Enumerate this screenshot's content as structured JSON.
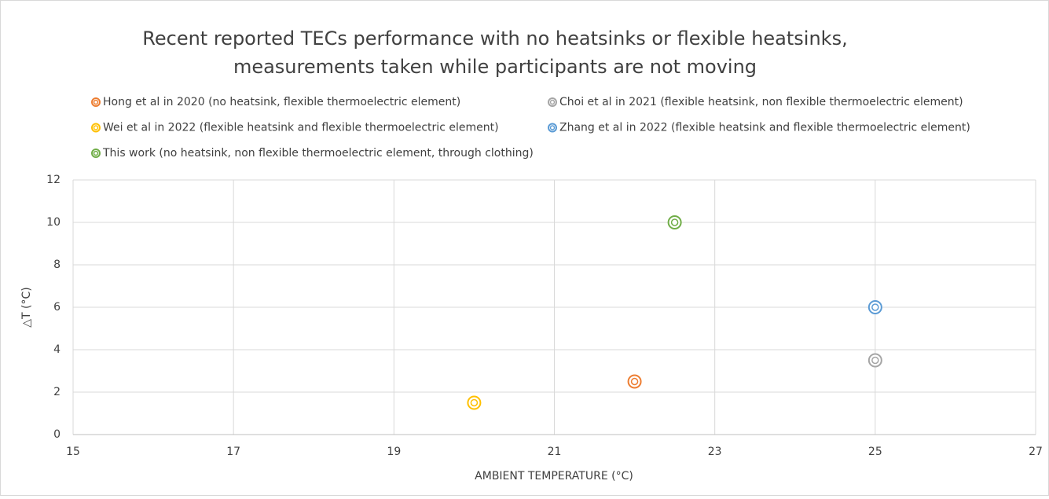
{
  "chart_data": {
    "type": "scatter",
    "title": [
      "Recent reported TECs performance with no heatsinks or flexible heatsinks,",
      "measurements taken while participants are not moving"
    ],
    "x_label": "AMBIENT TEMPERATURE (°C)",
    "y_label": "△T (°C)",
    "series": [
      {
        "name": "Hong et al in 2020 (no heatsink, flexible thermoelectric element)",
        "color": "#ED7D31",
        "x": [
          22
        ],
        "values": [
          2.5
        ]
      },
      {
        "name": "Choi et al in 2021 (flexible heatsink, non flexible thermoelectric element)",
        "color": "#A5A5A5",
        "x": [
          25
        ],
        "values": [
          3.5
        ]
      },
      {
        "name": "Wei et al in 2022 (flexible heatsink and flexible thermoelectric element)",
        "color": "#FFC000",
        "x": [
          20
        ],
        "values": [
          1.5
        ]
      },
      {
        "name": "Zhang et al in 2022 (flexible heatsink and flexible thermoelectric element)",
        "color": "#5B9BD5",
        "x": [
          25
        ],
        "values": [
          6
        ]
      },
      {
        "name": "This work (no heatsink, non flexible thermoelectric element, through clothing)",
        "color": "#70AD47",
        "x": [
          22.5
        ],
        "values": [
          10
        ]
      }
    ],
    "xlim": [
      15,
      27
    ],
    "xticks": [
      15,
      17,
      19,
      21,
      23,
      25,
      27
    ],
    "ylim": [
      0,
      12
    ],
    "yticks": [
      0,
      2,
      4,
      6,
      8,
      10,
      12
    ],
    "grid": true,
    "legend": "top"
  }
}
